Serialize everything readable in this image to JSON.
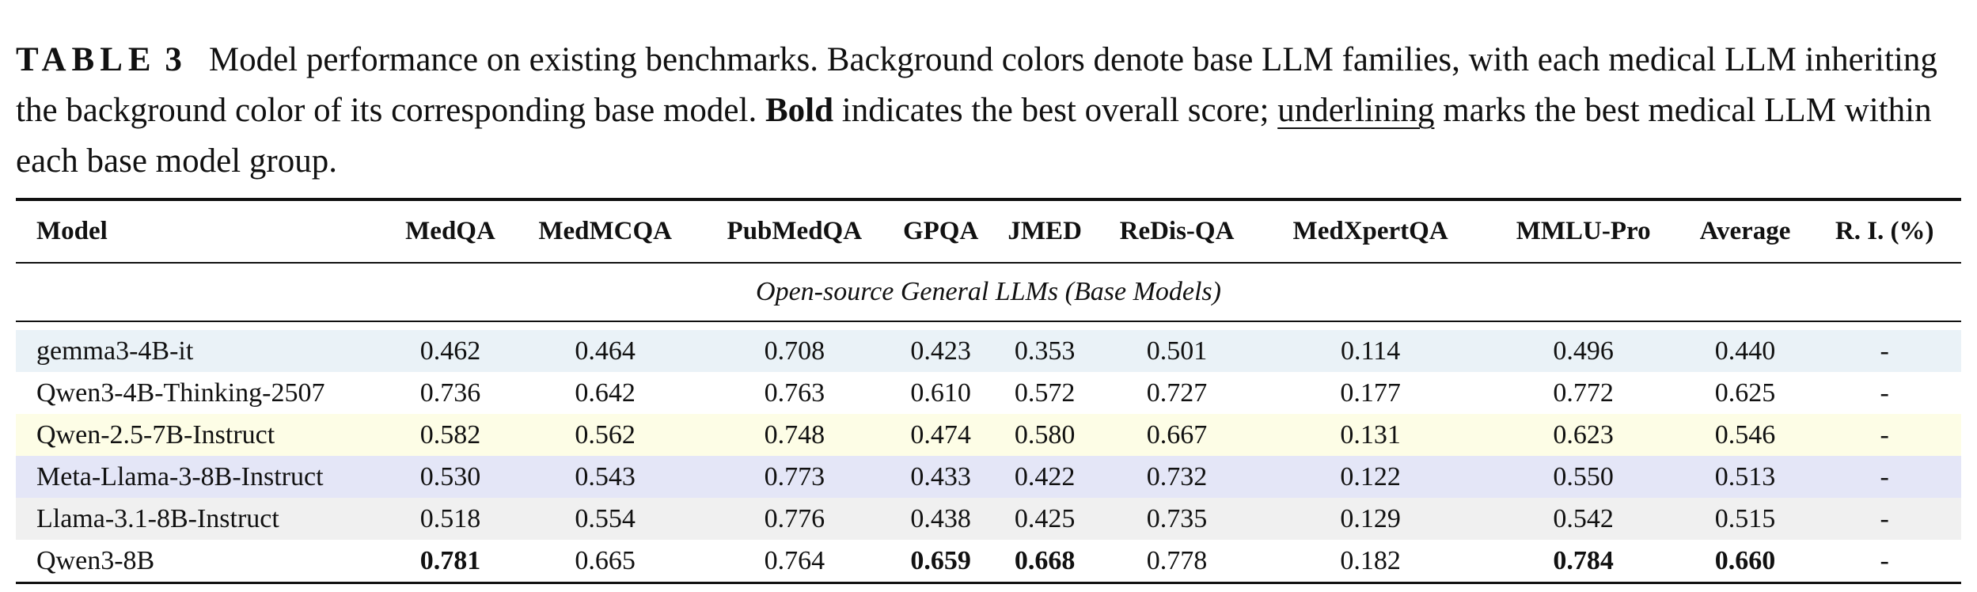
{
  "caption": {
    "label": "TABLE",
    "number": "3",
    "part1": "Model performance on existing benchmarks. Background colors denote base LLM families, with each medical LLM inheriting the background color of its corresponding base model. ",
    "bold_word": "Bold",
    "part2": " indicates the best overall score; ",
    "underline_word": "underlining",
    "part3": " marks the best medical LLM within each base model group."
  },
  "table": {
    "headers": [
      "Model",
      "MedQA",
      "MedMCQA",
      "PubMedQA",
      "GPQA",
      "JMED",
      "ReDis-QA",
      "MedXpertQA",
      "MMLU-Pro",
      "Average",
      "R. I. (%)"
    ],
    "section_title": "Open-source General LLMs (Base Models)",
    "rows": [
      {
        "name": "gemma3-4B-it",
        "bg": "#eaf2f7",
        "values": [
          "0.462",
          "0.464",
          "0.708",
          "0.423",
          "0.353",
          "0.501",
          "0.114",
          "0.496",
          "0.440",
          "-"
        ]
      },
      {
        "name": "Qwen3-4B-Thinking-2507",
        "bg": "#ffffff",
        "values": [
          "0.736",
          "0.642",
          "0.763",
          "0.610",
          "0.572",
          "0.727",
          "0.177",
          "0.772",
          "0.625",
          "-"
        ]
      },
      {
        "name": "Qwen-2.5-7B-Instruct",
        "bg": "#fdfde6",
        "values": [
          "0.582",
          "0.562",
          "0.748",
          "0.474",
          "0.580",
          "0.667",
          "0.131",
          "0.623",
          "0.546",
          "-"
        ]
      },
      {
        "name": "Meta-Llama-3-8B-Instruct",
        "bg": "#e4e6f7",
        "values": [
          "0.530",
          "0.543",
          "0.773",
          "0.433",
          "0.422",
          "0.732",
          "0.122",
          "0.550",
          "0.513",
          "-"
        ]
      },
      {
        "name": "Llama-3.1-8B-Instruct",
        "bg": "#f0f0f0",
        "values": [
          "0.518",
          "0.554",
          "0.776",
          "0.438",
          "0.425",
          "0.735",
          "0.129",
          "0.542",
          "0.515",
          "-"
        ]
      },
      {
        "name": "Qwen3-8B",
        "bg": "#ffffff",
        "values": [
          "0.781",
          "0.665",
          "0.764",
          "0.659",
          "0.668",
          "0.778",
          "0.182",
          "0.784",
          "0.660",
          "-"
        ],
        "bold_columns": [
          0,
          3,
          4,
          7,
          8
        ]
      }
    ]
  }
}
